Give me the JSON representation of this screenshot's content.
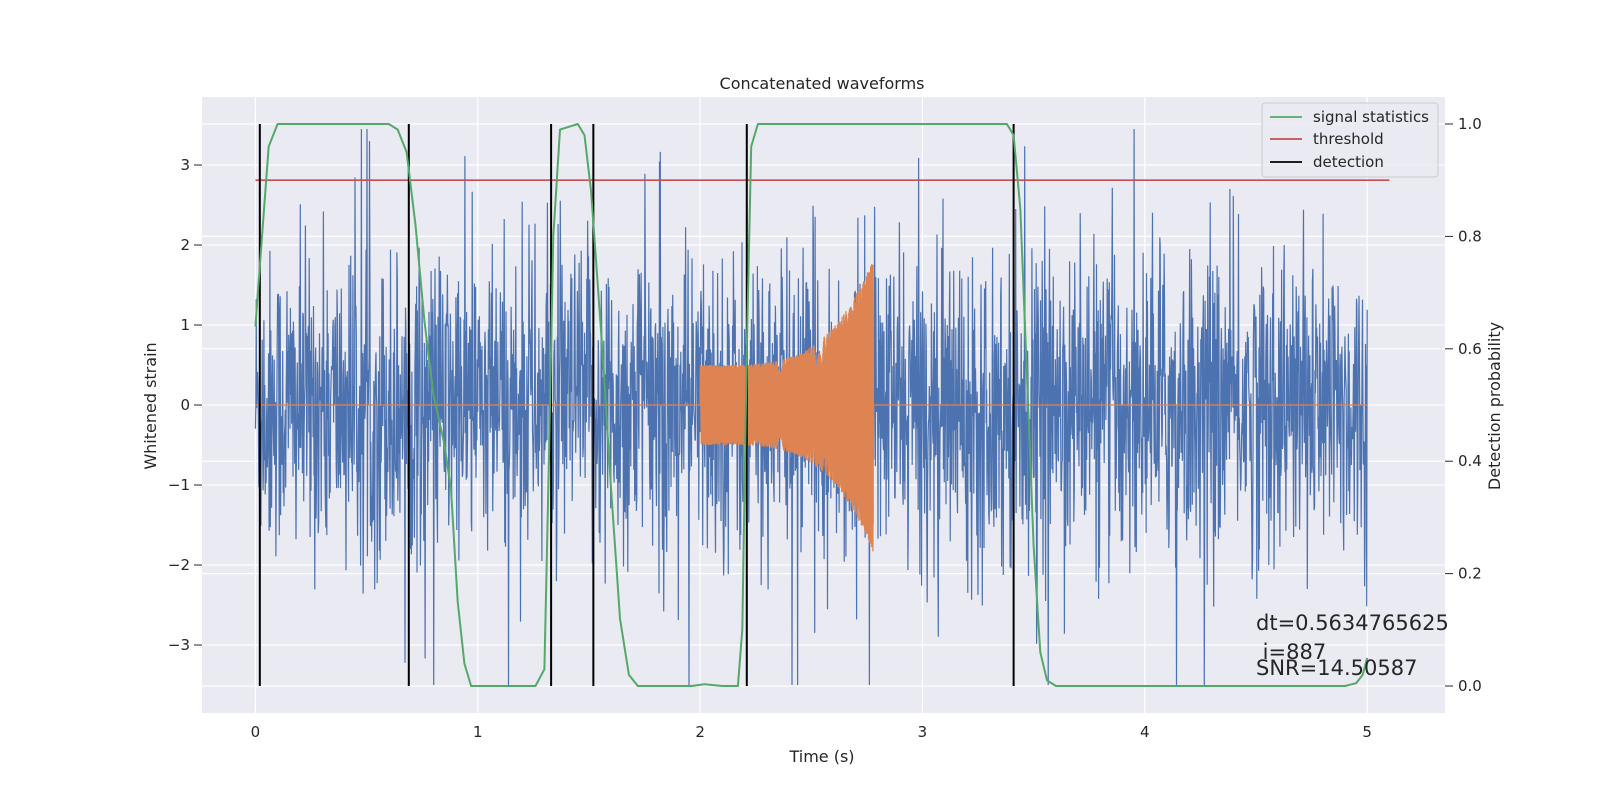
{
  "chart_data": {
    "type": "line",
    "title": "Concatenated waveforms",
    "xlabel": "Time (s)",
    "ylabel": "Whitened strain",
    "y2label": "Detection probability",
    "xlim": [
      -0.24,
      5.35
    ],
    "ylim": [
      -3.85,
      3.85
    ],
    "y2lim": [
      -0.048,
      1.048
    ],
    "xticks": [
      0,
      1,
      2,
      3,
      4,
      5
    ],
    "yticks": [
      -3,
      -2,
      -1,
      0,
      1,
      2,
      3
    ],
    "y2ticks": [
      0.0,
      0.2,
      0.4,
      0.6,
      0.8,
      1.0
    ],
    "xtick_labels": [
      "0",
      "1",
      "2",
      "3",
      "4",
      "5"
    ],
    "ytick_labels": [
      "−3",
      "−2",
      "−1",
      "0",
      "1",
      "2",
      "3"
    ],
    "y2tick_labels": [
      "0.0",
      "0.2",
      "0.4",
      "0.6",
      "0.8",
      "1.0"
    ],
    "grid": true,
    "legend_position": "top-right",
    "legend": [
      "signal statistics",
      "threshold",
      "detection"
    ],
    "series": [
      {
        "role": "noise",
        "color": "#4c72b0",
        "duration": 5.0,
        "envelope_range": [
          -3.5,
          3.45
        ]
      },
      {
        "role": "injected-chirp",
        "color": "#dd8452",
        "start": 2.0,
        "end": 2.78,
        "amplitude_start": 0.5,
        "amplitude_peak": 1.85
      },
      {
        "name": "signal statistics",
        "color": "#55a868",
        "axis": "right",
        "points": [
          [
            0.0,
            0.64
          ],
          [
            0.03,
            0.8
          ],
          [
            0.06,
            0.96
          ],
          [
            0.1,
            1.0
          ],
          [
            0.6,
            1.0
          ],
          [
            0.64,
            0.99
          ],
          [
            0.68,
            0.95
          ],
          [
            0.72,
            0.82
          ],
          [
            0.76,
            0.65
          ],
          [
            0.8,
            0.52
          ],
          [
            0.85,
            0.43
          ],
          [
            0.88,
            0.35
          ],
          [
            0.91,
            0.15
          ],
          [
            0.94,
            0.04
          ],
          [
            0.97,
            0.0
          ],
          [
            1.26,
            0.0
          ],
          [
            1.3,
            0.03
          ],
          [
            1.32,
            0.4
          ],
          [
            1.34,
            0.8
          ],
          [
            1.37,
            0.99
          ],
          [
            1.45,
            1.0
          ],
          [
            1.48,
            0.98
          ],
          [
            1.51,
            0.88
          ],
          [
            1.56,
            0.6
          ],
          [
            1.6,
            0.35
          ],
          [
            1.64,
            0.12
          ],
          [
            1.68,
            0.02
          ],
          [
            1.72,
            0.0
          ],
          [
            1.96,
            0.0
          ],
          [
            2.02,
            0.003
          ],
          [
            2.1,
            0.0
          ],
          [
            2.17,
            0.0
          ],
          [
            2.19,
            0.1
          ],
          [
            2.21,
            0.6
          ],
          [
            2.23,
            0.96
          ],
          [
            2.26,
            1.0
          ],
          [
            3.38,
            1.0
          ],
          [
            3.41,
            0.98
          ],
          [
            3.44,
            0.85
          ],
          [
            3.47,
            0.55
          ],
          [
            3.5,
            0.25
          ],
          [
            3.53,
            0.06
          ],
          [
            3.56,
            0.01
          ],
          [
            3.6,
            0.0
          ],
          [
            4.9,
            0.0
          ],
          [
            4.95,
            0.005
          ],
          [
            4.98,
            0.02
          ],
          [
            5.0,
            0.05
          ]
        ]
      },
      {
        "name": "threshold",
        "color": "#c44e52",
        "axis": "right",
        "y": 0.9,
        "xrange": [
          0.0,
          5.1
        ]
      },
      {
        "name": "detection",
        "color": "#000000",
        "axis": "right",
        "x": [
          0.02,
          0.69,
          1.33,
          1.52,
          2.21,
          3.41
        ],
        "yrange": [
          0.0,
          1.0
        ]
      }
    ],
    "annotation": {
      "lines": [
        "dt=0.5634765625",
        " i=887",
        "SNR=14.50587"
      ],
      "x": 4.5
    }
  }
}
